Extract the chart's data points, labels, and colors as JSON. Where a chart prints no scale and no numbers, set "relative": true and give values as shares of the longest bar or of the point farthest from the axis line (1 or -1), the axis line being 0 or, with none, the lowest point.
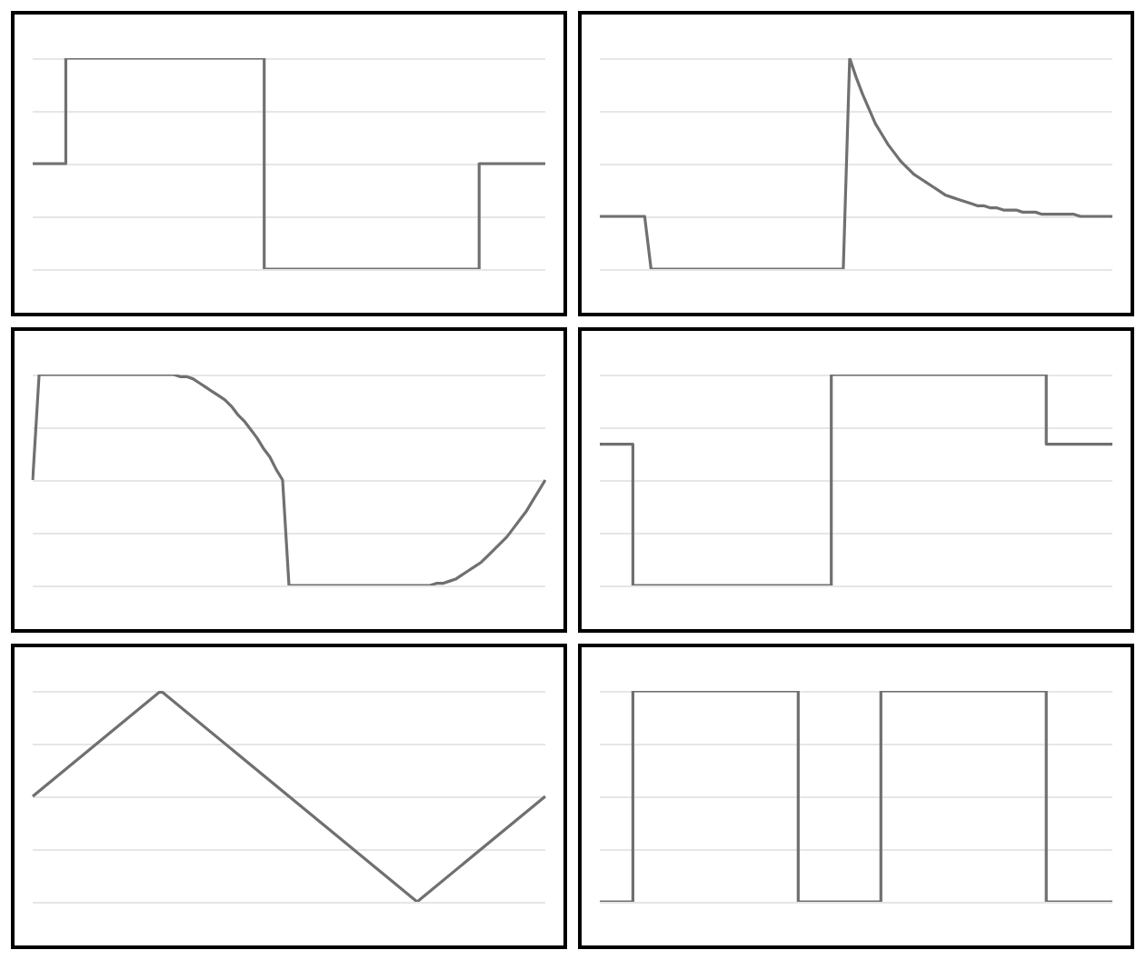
{
  "chart_data": [
    {
      "type": "step",
      "relative": true,
      "grid": "y",
      "tick_labels": false,
      "legend": false,
      "color": "#707070",
      "categories": [
        null,
        null,
        null,
        null,
        null,
        null,
        null,
        null,
        null,
        null,
        null,
        null,
        null,
        null,
        null,
        null,
        null,
        null,
        null,
        null,
        null,
        null,
        null,
        null,
        null,
        null,
        null,
        null,
        null,
        null,
        null,
        null
      ],
      "values": [
        0.5,
        0.5,
        0.5,
        1,
        1,
        1,
        1,
        1,
        1,
        1,
        1,
        1,
        1,
        1,
        1,
        0,
        0,
        0,
        0,
        0,
        0,
        0,
        0,
        0,
        0,
        0,
        0,
        0,
        0.5,
        0.5,
        0.5,
        0.5
      ]
    },
    {
      "type": "line",
      "relative": true,
      "grid": "y",
      "tick_labels": false,
      "legend": false,
      "color": "#707070",
      "categories": [
        null,
        null,
        null,
        null,
        null,
        null,
        null,
        null,
        null,
        null,
        null,
        null,
        null,
        null,
        null,
        null,
        null,
        null,
        null,
        null,
        null,
        null,
        null,
        null,
        null,
        null,
        null,
        null,
        null,
        null,
        null,
        null,
        null,
        null,
        null,
        null,
        null,
        null,
        null,
        null,
        null,
        null,
        null,
        null,
        null,
        null,
        null,
        null,
        null,
        null,
        null,
        null,
        null,
        null,
        null,
        null,
        null,
        null,
        null,
        null,
        null,
        null,
        null,
        null,
        null,
        null,
        null,
        null,
        null,
        null,
        null,
        null,
        null,
        null,
        null,
        null,
        null,
        null,
        null,
        null,
        null
      ],
      "values": [
        0.25,
        0.25,
        0.25,
        0.25,
        0.25,
        0.25,
        0.25,
        0.25,
        0,
        0,
        0,
        0,
        0,
        0,
        0,
        0,
        0,
        0,
        0,
        0,
        0,
        0,
        0,
        0,
        0,
        0,
        0,
        0,
        0,
        0,
        0,
        0,
        0,
        0,
        0,
        0,
        0,
        0,
        0,
        1,
        0.91,
        0.83,
        0.76,
        0.69,
        0.64,
        0.59,
        0.55,
        0.51,
        0.48,
        0.45,
        0.43,
        0.41,
        0.39,
        0.37,
        0.35,
        0.34,
        0.33,
        0.32,
        0.31,
        0.3,
        0.3,
        0.29,
        0.29,
        0.28,
        0.28,
        0.28,
        0.27,
        0.27,
        0.27,
        0.26,
        0.26,
        0.26,
        0.26,
        0.26,
        0.26,
        0.25,
        0.25,
        0.25,
        0.25,
        0.25,
        0.25
      ]
    },
    {
      "type": "line",
      "relative": true,
      "grid": "y",
      "tick_labels": false,
      "legend": false,
      "color": "#707070",
      "categories": [
        null,
        null,
        null,
        null,
        null,
        null,
        null,
        null,
        null,
        null,
        null,
        null,
        null,
        null,
        null,
        null,
        null,
        null,
        null,
        null,
        null,
        null,
        null,
        null,
        null,
        null,
        null,
        null,
        null,
        null,
        null,
        null,
        null,
        null,
        null,
        null,
        null,
        null,
        null,
        null,
        null,
        null,
        null,
        null,
        null,
        null,
        null,
        null,
        null,
        null,
        null,
        null,
        null,
        null,
        null,
        null,
        null,
        null,
        null,
        null,
        null,
        null,
        null,
        null,
        null,
        null,
        null,
        null,
        null,
        null,
        null,
        null,
        null,
        null,
        null,
        null,
        null,
        null,
        null,
        null,
        null
      ],
      "values": [
        0.5,
        1,
        1,
        1,
        1,
        1,
        1,
        1,
        1,
        1,
        1,
        1,
        1,
        1,
        1,
        1,
        1,
        1,
        1,
        1,
        1,
        1,
        1.0,
        0.99,
        0.99,
        0.98,
        0.96,
        0.94,
        0.92,
        0.9,
        0.88,
        0.85,
        0.81,
        0.78,
        0.74,
        0.7,
        0.65,
        0.61,
        0.55,
        0.5,
        0,
        0,
        0,
        0,
        0,
        0,
        0,
        0,
        0,
        0,
        0,
        0,
        0,
        0,
        0,
        0,
        0,
        0,
        0,
        0,
        0,
        0,
        0.0,
        0.01,
        0.01,
        0.02,
        0.03,
        0.05,
        0.07,
        0.09,
        0.11,
        0.14,
        0.17,
        0.2,
        0.23,
        0.27,
        0.31,
        0.35,
        0.4,
        0.45,
        0.5
      ]
    },
    {
      "type": "step",
      "relative": true,
      "grid": "y",
      "tick_labels": false,
      "legend": false,
      "color": "#707070",
      "categories": [
        null,
        null,
        null,
        null,
        null,
        null,
        null,
        null,
        null,
        null,
        null,
        null,
        null,
        null,
        null,
        null,
        null,
        null,
        null,
        null,
        null,
        null,
        null,
        null,
        null,
        null,
        null,
        null,
        null,
        null,
        null,
        null
      ],
      "values": [
        0.67,
        0.67,
        0.67,
        0,
        0,
        0,
        0,
        0,
        0,
        0,
        0,
        0,
        0,
        0,
        0,
        1,
        1,
        1,
        1,
        1,
        1,
        1,
        1,
        1,
        1,
        1,
        1,
        1,
        0.67,
        0.67,
        0.67,
        0.67
      ]
    },
    {
      "type": "line",
      "relative": true,
      "grid": "y",
      "tick_labels": false,
      "legend": false,
      "color": "#707070",
      "categories": [
        null,
        null,
        null,
        null,
        null
      ],
      "values": [
        0.5,
        1,
        0.5,
        0,
        0.5
      ]
    },
    {
      "type": "step",
      "relative": true,
      "grid": "y",
      "tick_labels": false,
      "legend": false,
      "color": "#707070",
      "categories": [
        null,
        null,
        null,
        null,
        null,
        null,
        null,
        null,
        null,
        null,
        null,
        null,
        null,
        null,
        null,
        null,
        null,
        null,
        null,
        null,
        null,
        null,
        null,
        null,
        null,
        null,
        null,
        null,
        null,
        null,
        null,
        null
      ],
      "values": [
        0,
        0,
        0,
        1,
        1,
        1,
        1,
        1,
        1,
        1,
        1,
        1,
        1,
        0,
        0,
        0,
        0,
        0,
        1,
        1,
        1,
        1,
        1,
        1,
        1,
        1,
        1,
        1,
        0,
        0,
        0,
        0
      ]
    }
  ]
}
